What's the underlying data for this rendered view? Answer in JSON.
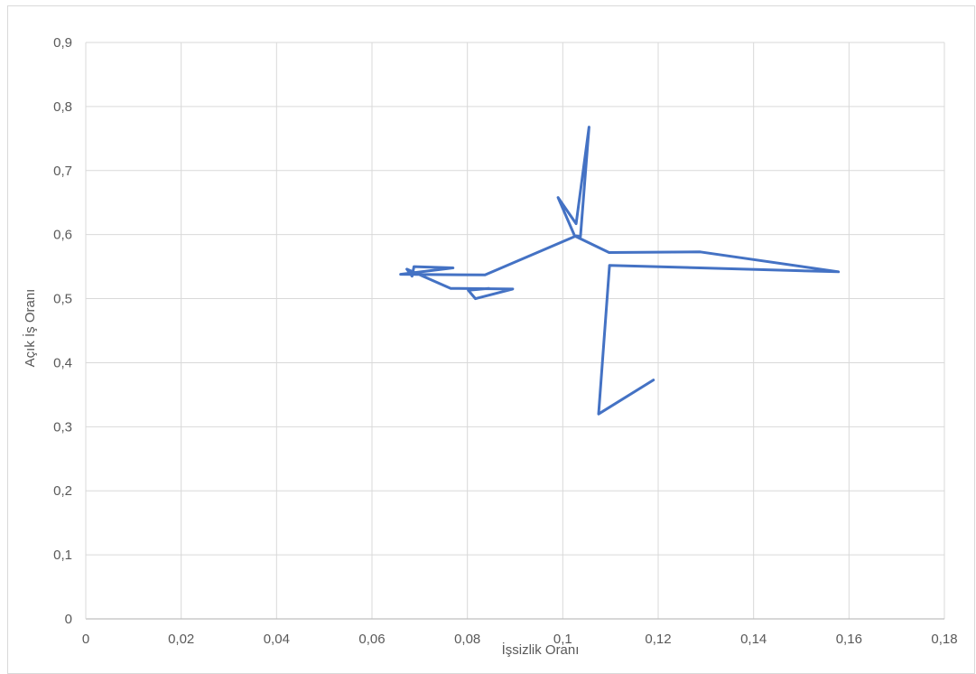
{
  "chart_data": {
    "type": "line",
    "title": "",
    "xlabel": "İşsizlik Oranı",
    "ylabel": "Açık İş Oranı",
    "xlim": [
      0,
      0.18
    ],
    "ylim": [
      0,
      0.9
    ],
    "x_ticks": [
      "0",
      "0,02",
      "0,04",
      "0,06",
      "0,08",
      "0,1",
      "0,12",
      "0,14",
      "0,16",
      "0,18"
    ],
    "y_ticks": [
      "0",
      "0,1",
      "0,2",
      "0,3",
      "0,4",
      "0,5",
      "0,6",
      "0,7",
      "0,8",
      "0,9"
    ],
    "grid": true,
    "legend": "none",
    "series_color": "#4472c4",
    "series": [
      {
        "x": [
          0.119,
          0.1075,
          0.1098,
          0.1578,
          0.1288,
          0.1097,
          0.1025,
          0.099,
          0.1028,
          0.1055,
          0.1037,
          0.1028,
          0.0837,
          0.066,
          0.077,
          0.0688,
          0.0684,
          0.0673,
          0.0765,
          0.0895,
          0.0817,
          0.0802,
          0.0845
        ],
        "y": [
          0.373,
          0.32,
          0.552,
          0.542,
          0.573,
          0.572,
          0.598,
          0.658,
          0.617,
          0.768,
          0.597,
          0.598,
          0.537,
          0.538,
          0.548,
          0.55,
          0.535,
          0.546,
          0.516,
          0.515,
          0.5,
          0.513,
          0.516
        ]
      }
    ]
  }
}
